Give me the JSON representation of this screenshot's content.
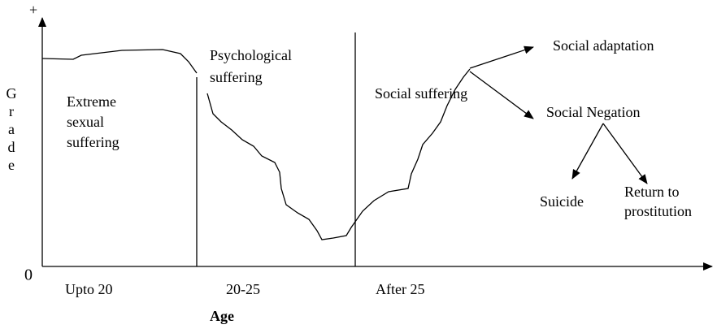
{
  "axes": {
    "y_top": "+",
    "origin": "0",
    "y_label_letters": [
      "G",
      "r",
      "a",
      "d",
      "e"
    ],
    "x_label": "Age"
  },
  "phases": [
    {
      "age": "Upto 20",
      "lines": [
        "Extreme",
        "sexual",
        "suffering"
      ]
    },
    {
      "age": "20-25",
      "lines": [
        "Psychological",
        "suffering"
      ]
    },
    {
      "age": "After 25",
      "lines": [
        "Social suffering"
      ]
    }
  ],
  "outcomes": {
    "adaptation": "Social adaptation",
    "negation": "Social Negation",
    "suicide": "Suicide",
    "return_lines": [
      "Return to",
      "prostitution"
    ]
  }
}
